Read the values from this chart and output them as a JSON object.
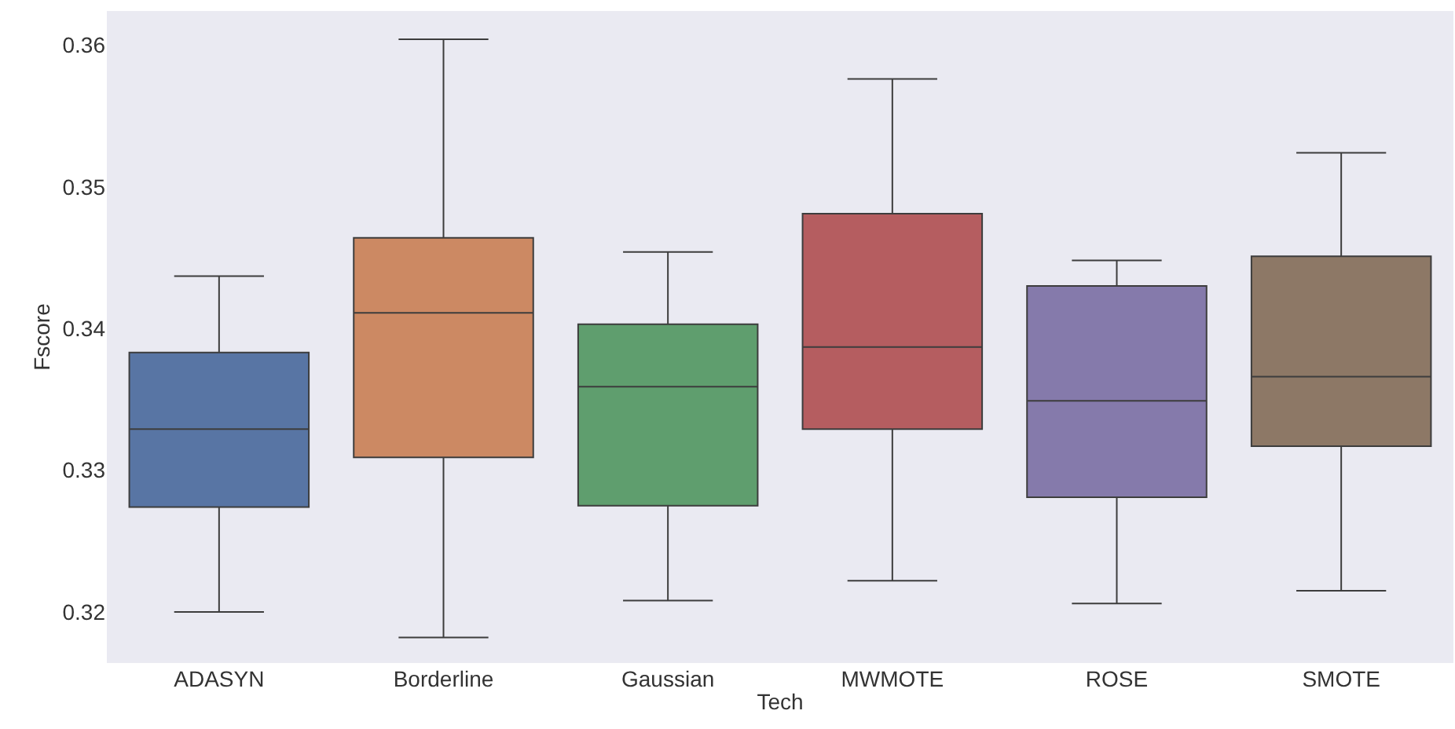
{
  "chart_data": {
    "type": "box",
    "xlabel": "Tech",
    "ylabel": "Fscore",
    "categories": [
      "ADASYN",
      "Borderline",
      "Gaussian",
      "MWMOTE",
      "ROSE",
      "SMOTE"
    ],
    "colors": [
      "#5875a4",
      "#cc8963",
      "#5f9e6e",
      "#b55d60",
      "#857aab",
      "#8d7866"
    ],
    "boxes": [
      {
        "low": 0.32,
        "q1": 0.3274,
        "median": 0.3329,
        "q3": 0.3383,
        "high": 0.3437
      },
      {
        "low": 0.3182,
        "q1": 0.3309,
        "median": 0.3411,
        "q3": 0.3464,
        "high": 0.3604
      },
      {
        "low": 0.3208,
        "q1": 0.3275,
        "median": 0.3359,
        "q3": 0.3403,
        "high": 0.3454
      },
      {
        "low": 0.3222,
        "q1": 0.3329,
        "median": 0.3387,
        "q3": 0.3481,
        "high": 0.3576
      },
      {
        "low": 0.3206,
        "q1": 0.3281,
        "median": 0.3349,
        "q3": 0.343,
        "high": 0.3448
      },
      {
        "low": 0.3215,
        "q1": 0.3317,
        "median": 0.3366,
        "q3": 0.3451,
        "high": 0.3524
      }
    ],
    "ylim": [
      0.3164,
      0.3624
    ],
    "yticks": [
      0.32,
      0.33,
      0.34,
      0.35,
      0.36
    ]
  }
}
